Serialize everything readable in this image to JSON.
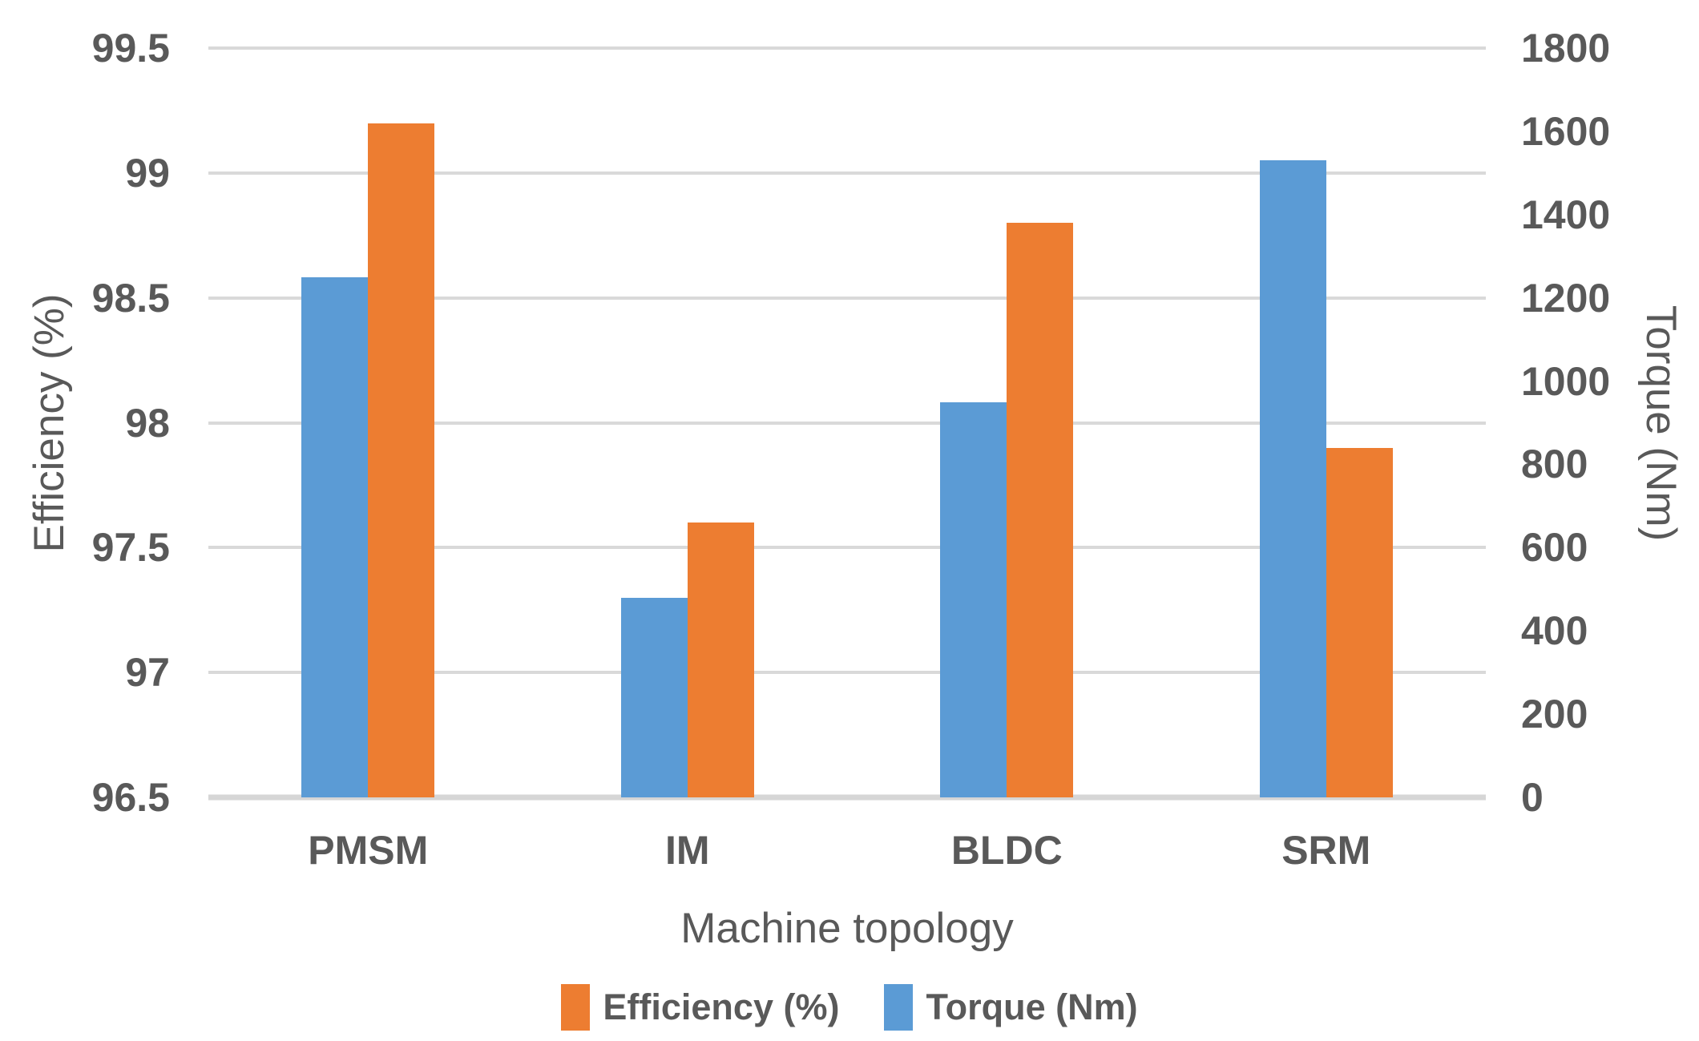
{
  "chart_data": {
    "type": "bar",
    "title": "",
    "categories": [
      "PMSM",
      "IM",
      "BLDC",
      "SRM"
    ],
    "series": [
      {
        "name": "Efficiency (%)",
        "axis": "left",
        "color": "#ED7D31",
        "values": [
          99.2,
          97.6,
          98.8,
          97.9
        ]
      },
      {
        "name": "Torque (Nm)",
        "axis": "right",
        "color": "#5B9BD5",
        "values": [
          1250,
          480,
          950,
          1530
        ]
      }
    ],
    "xlabel": "Machine topology",
    "left_axis": {
      "title": "Efficiency (%)",
      "min": 96.5,
      "max": 99.5,
      "step": 0.5,
      "ticks": [
        "99.5",
        "99",
        "98.5",
        "98",
        "97.5",
        "97",
        "96.5"
      ]
    },
    "right_axis": {
      "title": "Torque (Nm)",
      "min": 0,
      "max": 1800,
      "step": 200,
      "ticks": [
        "1800",
        "1600",
        "1400",
        "1200",
        "1000",
        "800",
        "600",
        "400",
        "200",
        "0"
      ]
    },
    "legend": [
      {
        "label": "Efficiency (%)",
        "color": "#ED7D31"
      },
      {
        "label": "Torque (Nm)",
        "color": "#5B9BD5"
      }
    ],
    "legend_position": "bottom",
    "grid": true
  },
  "styles": {
    "text_color": "#595959",
    "gridline_color": "#D9D9D9",
    "background": "#FFFFFF"
  }
}
